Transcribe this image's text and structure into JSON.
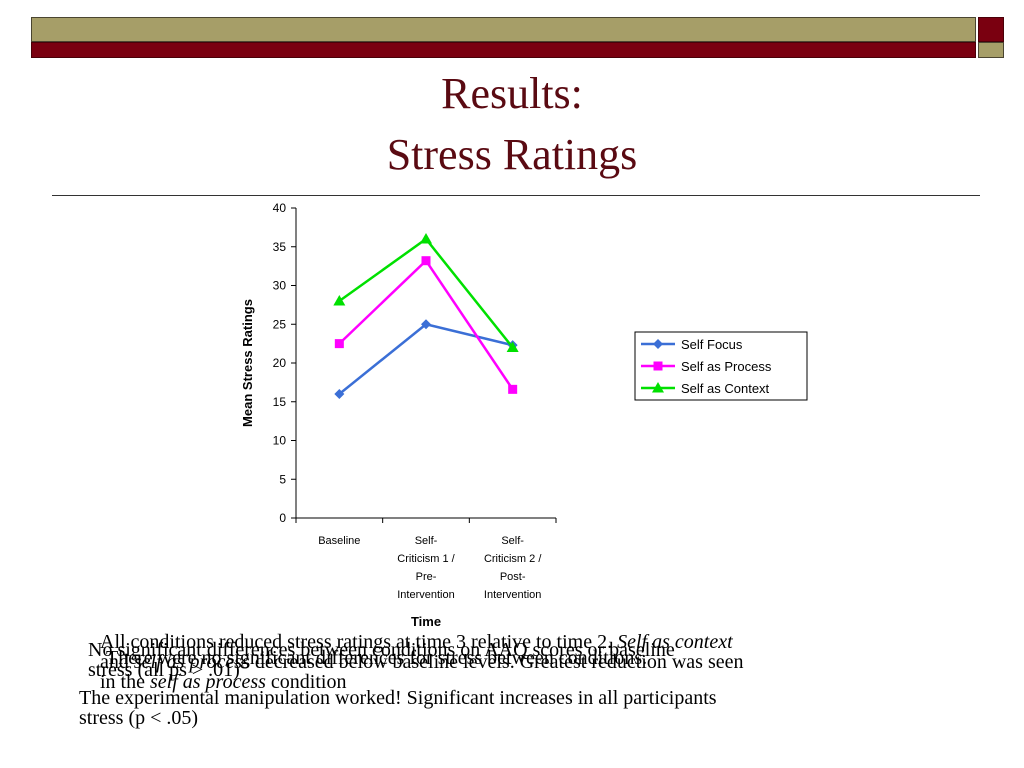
{
  "slide": {
    "title_line1": "Results:",
    "title_line2": "Stress Ratings",
    "colors": {
      "olive": "#a69e68",
      "maroon": "#7a0010",
      "title": "#5a0a12"
    }
  },
  "chart_data": {
    "type": "line",
    "categories": [
      [
        "Baseline"
      ],
      [
        "Self-",
        "Criticism 1 /",
        "Pre-",
        "Intervention"
      ],
      [
        "Self-",
        "Criticism 2 /",
        "Post-",
        "Intervention"
      ]
    ],
    "series": [
      {
        "name": "Self Focus",
        "values": [
          16,
          25,
          22.3
        ],
        "color": "#3b6fd6",
        "marker": "diamond"
      },
      {
        "name": "Self as Process",
        "values": [
          22.5,
          33.2,
          16.6
        ],
        "color": "#ff00ff",
        "marker": "square"
      },
      {
        "name": "Self as Context",
        "values": [
          28,
          36,
          22
        ],
        "color": "#00e000",
        "marker": "triangle"
      }
    ],
    "xlabel": "Time",
    "ylabel": "Mean Stress Ratings",
    "ylim": [
      0,
      40
    ],
    "yticks": [
      0,
      5,
      10,
      15,
      20,
      25,
      30,
      35,
      40
    ],
    "grid": false,
    "legend": "right"
  },
  "text": {
    "layer_a": {
      "line1_pre": "All conditions reduced stress ratings at time 3 relative to time 2.",
      "line1_italic": "Self as context",
      "line2_pre": "and",
      "line2_italic": "self as process",
      "line2_post": "decreased below baseline levels. Greatest reduction was seen",
      "line3_pre": "in the",
      "line3_italic": "self as process",
      "line3_post": "condition"
    },
    "layer_b": {
      "line1": "No significant differences between conditions on AAQ scores or baseline",
      "line1b": "There were no significant differences for stress between conditions.",
      "line2": "stress (all ps > .01)"
    },
    "layer_c": {
      "line1": "The experimental manipulation worked! Significant increases in all participants",
      "line2": "stress (p < .05)"
    }
  }
}
